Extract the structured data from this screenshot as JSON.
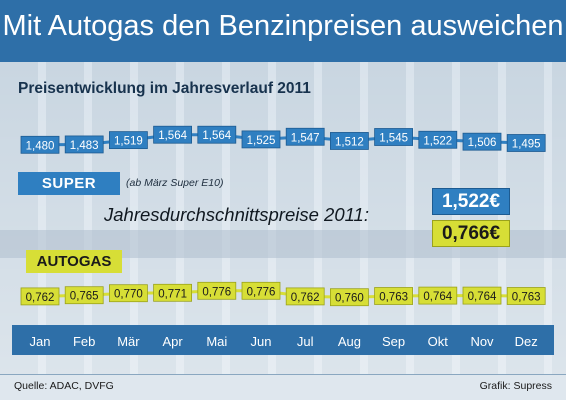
{
  "title": "Mit Autogas den Benzinpreisen ausweichen",
  "subtitle": "Preisentwicklung im Jahresverlauf 2011",
  "super_label": "SUPER",
  "super_note": "(ab März Super E10)",
  "autogas_label": "AUTOGAS",
  "average_label": "Jahresdurchschnittspreise 2011:",
  "average_super": "1,522€",
  "average_autogas": "0,766€",
  "source": "Quelle: ADAC, DVFG",
  "credit": "Grafik: Supress",
  "colors": {
    "super": "#2f7fc1",
    "autogas": "#d7de36",
    "header": "#2e6fa8"
  },
  "chart_data": {
    "type": "line",
    "title": "Preisentwicklung im Jahresverlauf 2011",
    "categories": [
      "Jan",
      "Feb",
      "Mär",
      "Apr",
      "Mai",
      "Jun",
      "Jul",
      "Aug",
      "Sep",
      "Okt",
      "Nov",
      "Dez"
    ],
    "series": [
      {
        "name": "SUPER",
        "values": [
          1.48,
          1.483,
          1.519,
          1.564,
          1.564,
          1.525,
          1.547,
          1.512,
          1.545,
          1.522,
          1.506,
          1.495
        ],
        "labels": [
          "1,480",
          "1,483",
          "1,519",
          "1,564",
          "1,564",
          "1,525",
          "1,547",
          "1,512",
          "1,545",
          "1,522",
          "1,506",
          "1,495"
        ]
      },
      {
        "name": "AUTOGAS",
        "values": [
          0.762,
          0.765,
          0.77,
          0.771,
          0.776,
          0.776,
          0.762,
          0.76,
          0.763,
          0.764,
          0.764,
          0.763
        ],
        "labels": [
          "0,762",
          "0,765",
          "0,770",
          "0,771",
          "0,776",
          "0,776",
          "0,762",
          "0,760",
          "0,763",
          "0,764",
          "0,764",
          "0,763"
        ]
      }
    ],
    "averages": {
      "SUPER": 1.522,
      "AUTOGAS": 0.766
    },
    "legend": "inline labels",
    "grid": false
  }
}
